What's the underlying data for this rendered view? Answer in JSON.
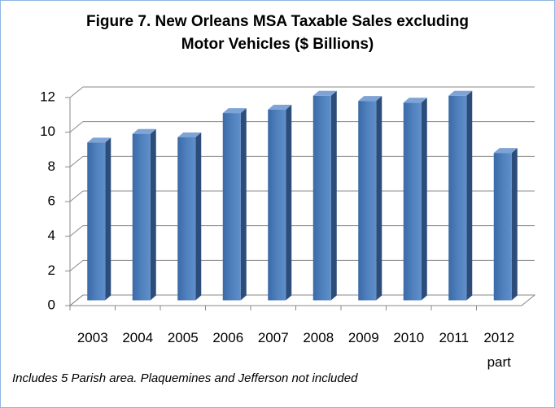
{
  "chart_data": {
    "type": "bar3d",
    "title": "Figure 7. New Orleans MSA Taxable Sales excluding Motor Vehicles ($ Billions)",
    "categories": [
      "2003",
      "2004",
      "2005",
      "2006",
      "2007",
      "2008",
      "2009",
      "2010",
      "2011",
      "2012 part"
    ],
    "values": [
      9.1,
      9.6,
      9.4,
      10.8,
      11.0,
      11.8,
      11.5,
      11.4,
      11.8,
      8.5
    ],
    "color": "#4f81bd",
    "ylim": [
      0,
      12
    ],
    "yticks": [
      0,
      2,
      4,
      6,
      8,
      10,
      12
    ],
    "grid": true,
    "note": "Includes 5 Parish area. Plaquemines and Jefferson not included"
  }
}
